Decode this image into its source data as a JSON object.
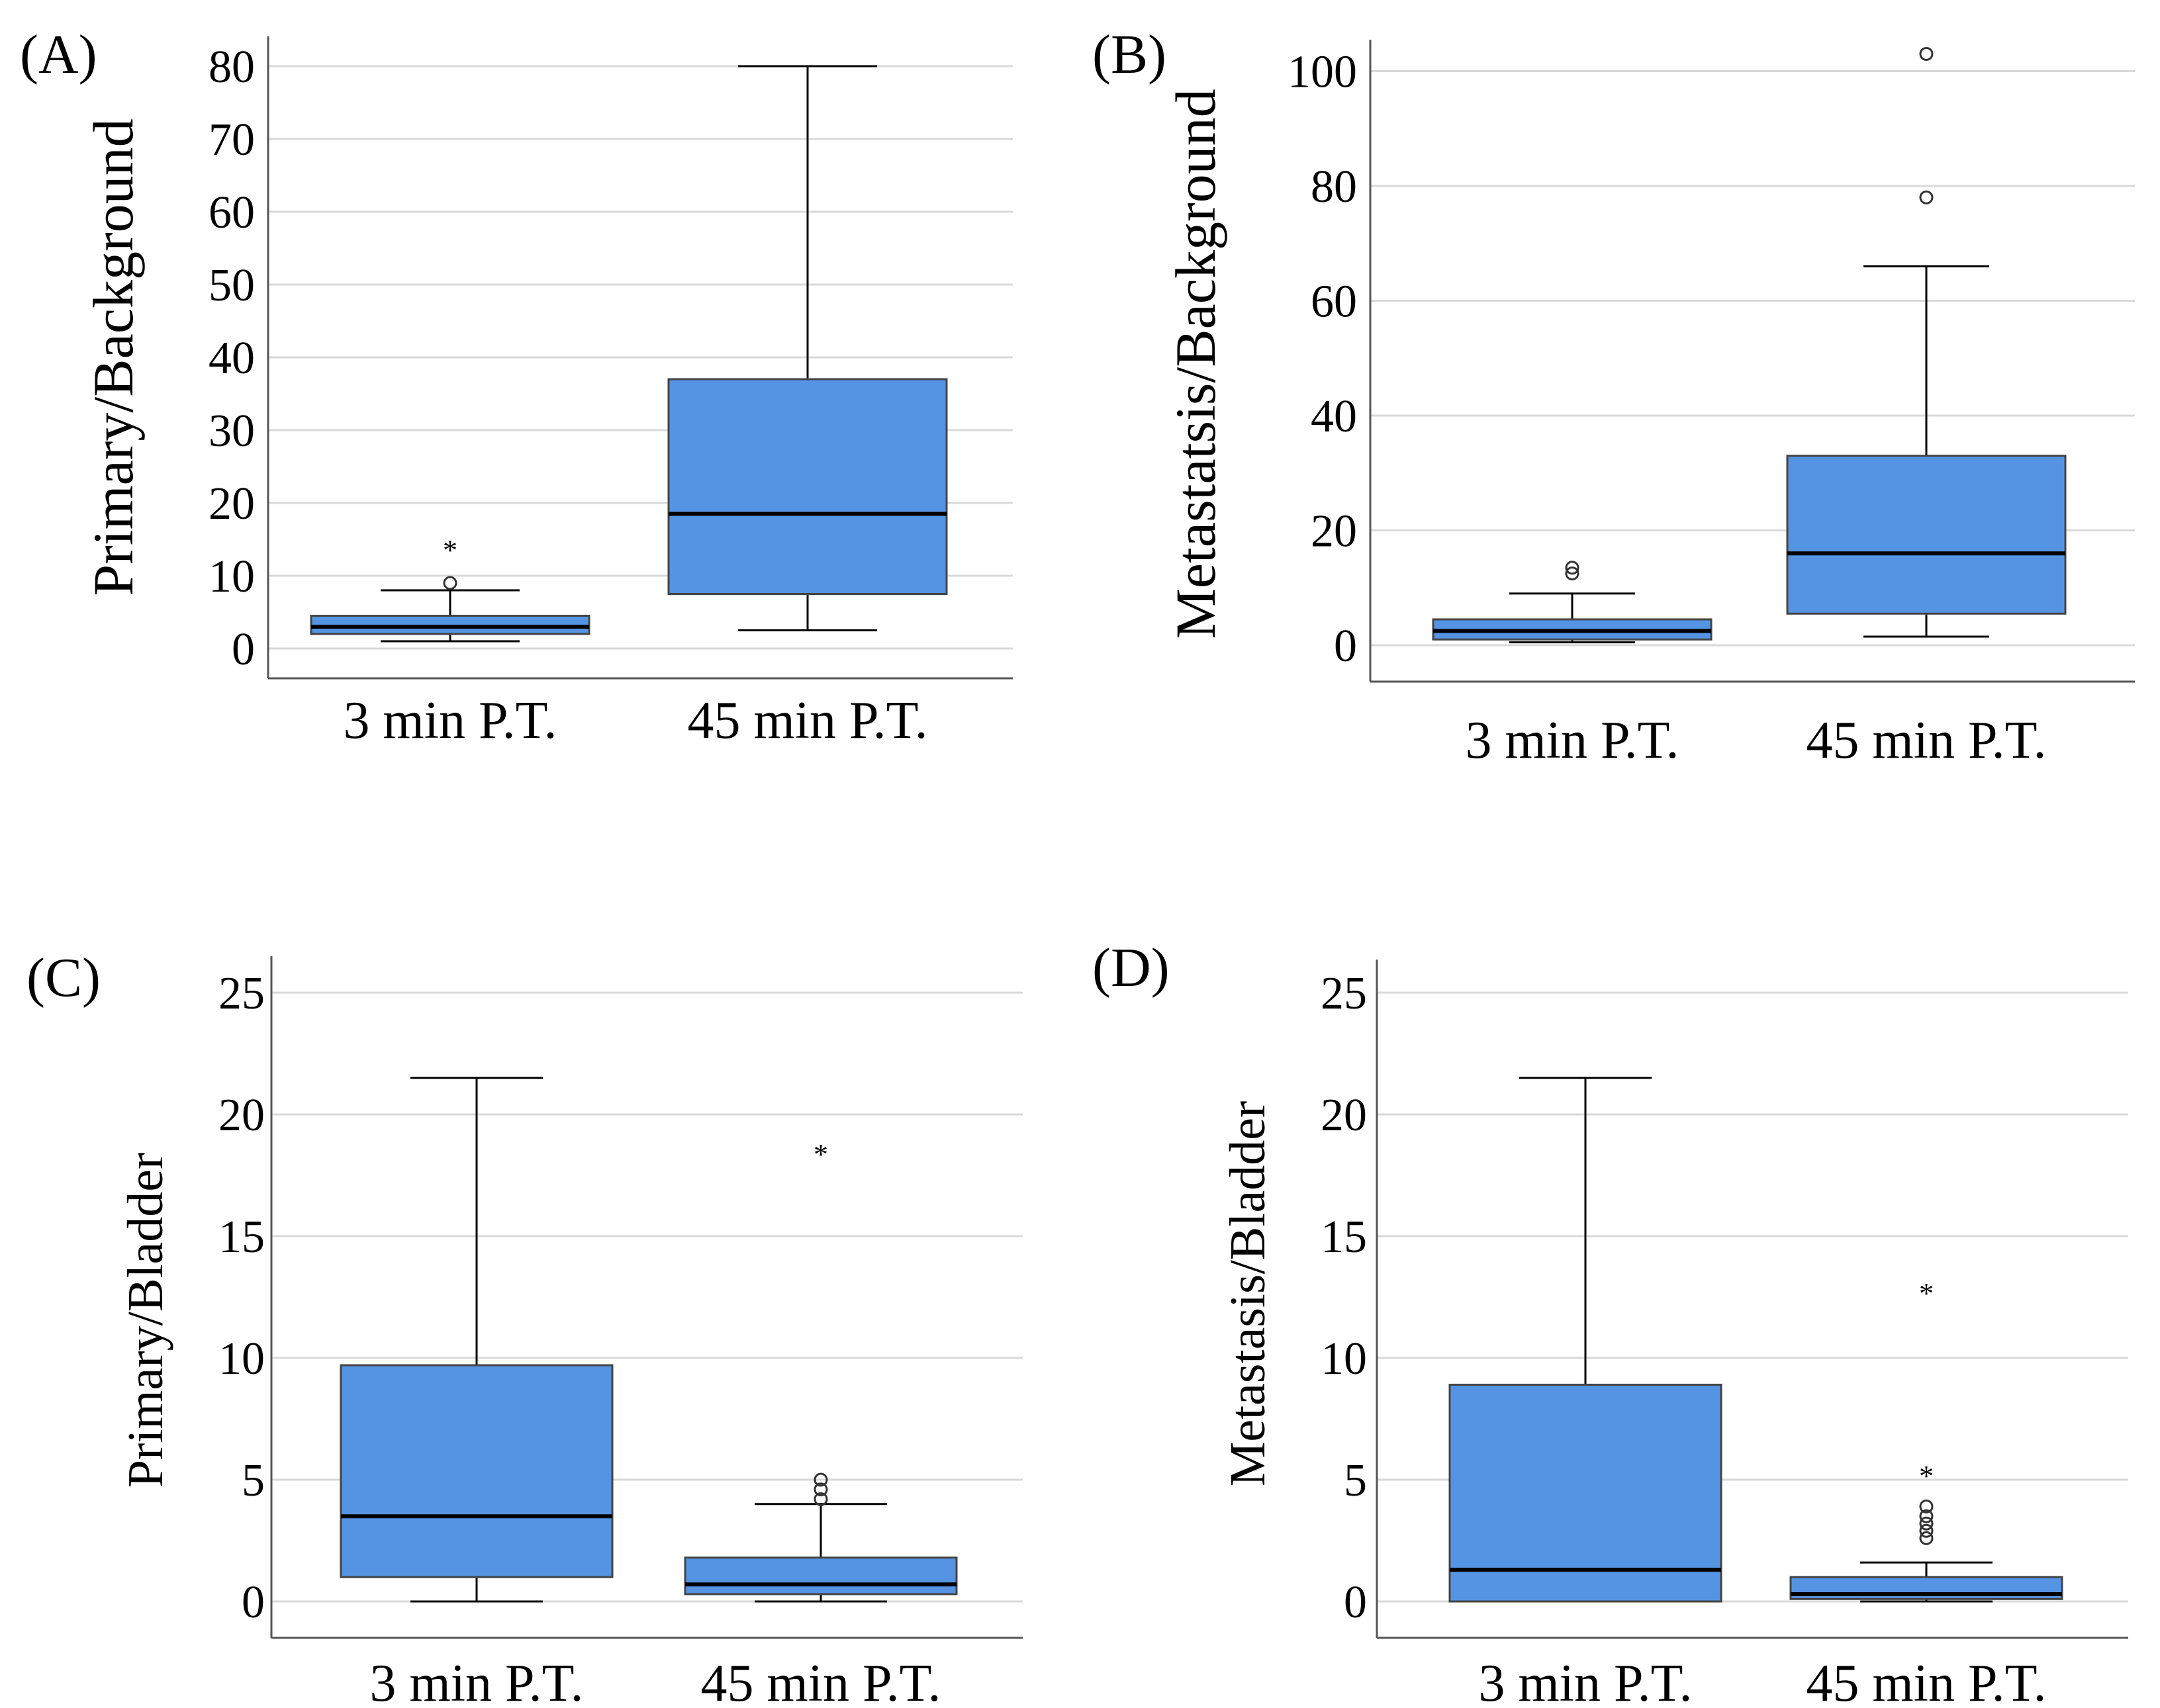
{
  "style": {
    "box_fill": "#5594e2",
    "grid": "#d9d9d9",
    "axis": "#555555",
    "line": "#000000"
  },
  "chart_data": [
    {
      "panel": "(A)",
      "type": "boxplot",
      "ylabel": "Primary/Background",
      "ylim": [
        -4,
        82
      ],
      "yticks": [
        "0",
        "10",
        "20",
        "30",
        "40",
        "50",
        "60",
        "70",
        "80"
      ],
      "yticks_values": [
        0,
        10,
        20,
        30,
        40,
        50,
        60,
        70,
        80
      ],
      "categories": [
        "3 min P.T.",
        "45 min P.T."
      ],
      "boxes": [
        {
          "min": 1,
          "q1": 2,
          "median": 3,
          "q3": 4.5,
          "max": 8,
          "outliers": [
            {
              "v": 9,
              "m": "o"
            },
            {
              "v": 14,
              "m": "*"
            }
          ]
        },
        {
          "min": 2.5,
          "q1": 7.5,
          "median": 18.5,
          "q3": 37,
          "max": 80,
          "outliers": []
        }
      ]
    },
    {
      "panel": "(B)",
      "type": "boxplot",
      "ylabel": "Metastatsis/Background",
      "ylim": [
        -5,
        105
      ],
      "yticks": [
        "0",
        "20",
        "40",
        "60",
        "80",
        "100"
      ],
      "yticks_values": [
        0,
        20,
        40,
        60,
        80,
        100
      ],
      "categories": [
        "3 min P.T.",
        "45 min P.T."
      ],
      "boxes": [
        {
          "min": 0.5,
          "q1": 1,
          "median": 2.5,
          "q3": 4.5,
          "max": 9,
          "outliers": [
            {
              "v": 12.5,
              "m": "o"
            },
            {
              "v": 13.5,
              "m": "o"
            }
          ]
        },
        {
          "min": 1.5,
          "q1": 5.5,
          "median": 16,
          "q3": 33,
          "max": 66,
          "outliers": [
            {
              "v": 78,
              "m": "o"
            },
            {
              "v": 103,
              "m": "o"
            }
          ]
        }
      ]
    },
    {
      "panel": "(C)",
      "type": "boxplot",
      "ylabel": "Primary/Bladder",
      "ylim": [
        -1,
        26.5
      ],
      "yticks": [
        "0",
        "5",
        "10",
        "15",
        "20",
        "25"
      ],
      "yticks_values": [
        0,
        5,
        10,
        15,
        20,
        25
      ],
      "categories": [
        "3 min P.T.",
        "45 min P.T."
      ],
      "boxes": [
        {
          "min": 0,
          "q1": 1,
          "median": 3.5,
          "q3": 9.7,
          "max": 21.5,
          "outliers": []
        },
        {
          "min": 0,
          "q1": 0.3,
          "median": 0.7,
          "q3": 1.8,
          "max": 4,
          "outliers": [
            {
              "v": 4.2,
              "m": "o"
            },
            {
              "v": 4.6,
              "m": "o"
            },
            {
              "v": 5,
              "m": "o"
            },
            {
              "v": 18.5,
              "m": "*"
            }
          ]
        }
      ]
    },
    {
      "panel": "(D)",
      "type": "boxplot",
      "ylabel": "Metastasis/Bladder",
      "ylim": [
        -1.3,
        26.5
      ],
      "yticks": [
        "0",
        "5",
        "10",
        "15",
        "20",
        "25"
      ],
      "yticks_values": [
        0,
        5,
        10,
        15,
        20,
        25
      ],
      "categories": [
        "3 min P.T.",
        "45 min P.T."
      ],
      "boxes": [
        {
          "min": 0,
          "q1": 0,
          "median": 1.3,
          "q3": 8.9,
          "max": 21.5,
          "outliers": []
        },
        {
          "min": 0,
          "q1": 0.1,
          "median": 0.3,
          "q3": 1,
          "max": 1.6,
          "outliers": [
            {
              "v": 2.6,
              "m": "o"
            },
            {
              "v": 2.9,
              "m": "o"
            },
            {
              "v": 3.2,
              "m": "o"
            },
            {
              "v": 3.5,
              "m": "o"
            },
            {
              "v": 3.9,
              "m": "o"
            },
            {
              "v": 5.3,
              "m": "*"
            },
            {
              "v": 12.8,
              "m": "*"
            }
          ]
        }
      ]
    }
  ]
}
